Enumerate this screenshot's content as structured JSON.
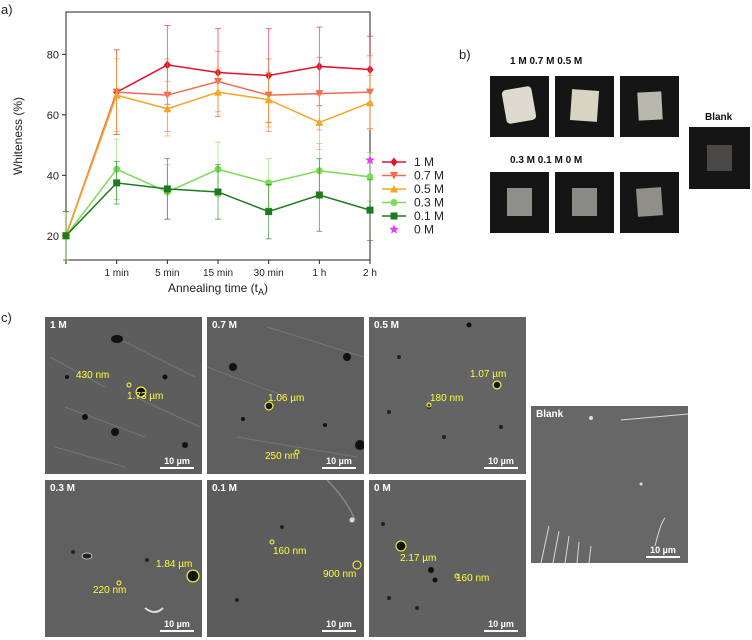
{
  "panels": {
    "a": "a)",
    "b": "b)",
    "c": "c)"
  },
  "chart_data": {
    "type": "line",
    "xlabel": "Annealing time (t",
    "xlabel_sub": "A",
    "xlabel_end": ")",
    "ylabel": "Whiteness (%)",
    "categories": [
      "",
      "1 min",
      "5 min",
      "15 min",
      "30 min",
      "1 h",
      "2 h"
    ],
    "ylim": [
      12,
      94
    ],
    "yticks": [
      "20",
      "40",
      "60",
      "80"
    ],
    "ytick_values": [
      20,
      40,
      60,
      80
    ],
    "legend_position": "right",
    "series": [
      {
        "name": "1 M",
        "color": "#e8112d",
        "marker": "diamond",
        "values": [
          20,
          67.5,
          76.5,
          74,
          73,
          76,
          75
        ],
        "errors": [
          8,
          14,
          13,
          14.5,
          15.5,
          13,
          11
        ]
      },
      {
        "name": "0.7 M",
        "color": "#f26b4f",
        "marker": "triangle-down",
        "values": [
          20,
          67.5,
          66.5,
          71,
          66.5,
          67,
          67.5
        ],
        "errors": [
          8,
          14,
          12,
          10,
          12,
          12,
          12
        ]
      },
      {
        "name": "0.5 M",
        "color": "#f5a623",
        "marker": "triangle-up",
        "values": [
          20,
          66.5,
          62,
          67.5,
          65,
          57.5,
          64
        ],
        "errors": [
          8,
          12,
          9,
          8,
          9,
          9,
          9
        ]
      },
      {
        "name": "0.3 M",
        "color": "#7ed957",
        "marker": "circle",
        "values": [
          20,
          42,
          34.5,
          42,
          37.5,
          41.5,
          39.5
        ],
        "errors": [
          8,
          10,
          9,
          9,
          8,
          9,
          8
        ]
      },
      {
        "name": "0.1 M",
        "color": "#1f7a1f",
        "marker": "square",
        "values": [
          20,
          37.5,
          35.5,
          34.5,
          28,
          33.5,
          28.5
        ],
        "errors": [
          8,
          7,
          10,
          9,
          9,
          12,
          10
        ]
      },
      {
        "name": "0 M",
        "color": "#e040fb",
        "marker": "star",
        "values": [
          null,
          null,
          null,
          null,
          null,
          null,
          45
        ],
        "errors": [
          0,
          0,
          0,
          0,
          0,
          0,
          0
        ]
      }
    ]
  },
  "photos": {
    "label_top": "1 M 0.7 M 0.5 M",
    "label_bottom": "0.3 M 0.1 M 0 M",
    "label_blank": "Blank"
  },
  "sem": {
    "scale_label": "10 µm",
    "tiles": [
      {
        "tag": "1 M",
        "annotations": [
          "430 nm",
          "1.73 µm"
        ]
      },
      {
        "tag": "0.7 M",
        "annotations": [
          "1.06 µm",
          "250 nm"
        ]
      },
      {
        "tag": "0.5 M",
        "annotations": [
          "1.07 µm",
          "180 nm"
        ]
      },
      {
        "tag": "0.3 M",
        "annotations": [
          "1.84 µm",
          "220 nm"
        ]
      },
      {
        "tag": "0.1 M",
        "annotations": [
          "160 nm",
          "900 nm"
        ]
      },
      {
        "tag": "0 M",
        "annotations": [
          "2.17 µm",
          "160 nm"
        ]
      },
      {
        "tag": "Blank",
        "annotations": []
      }
    ]
  }
}
